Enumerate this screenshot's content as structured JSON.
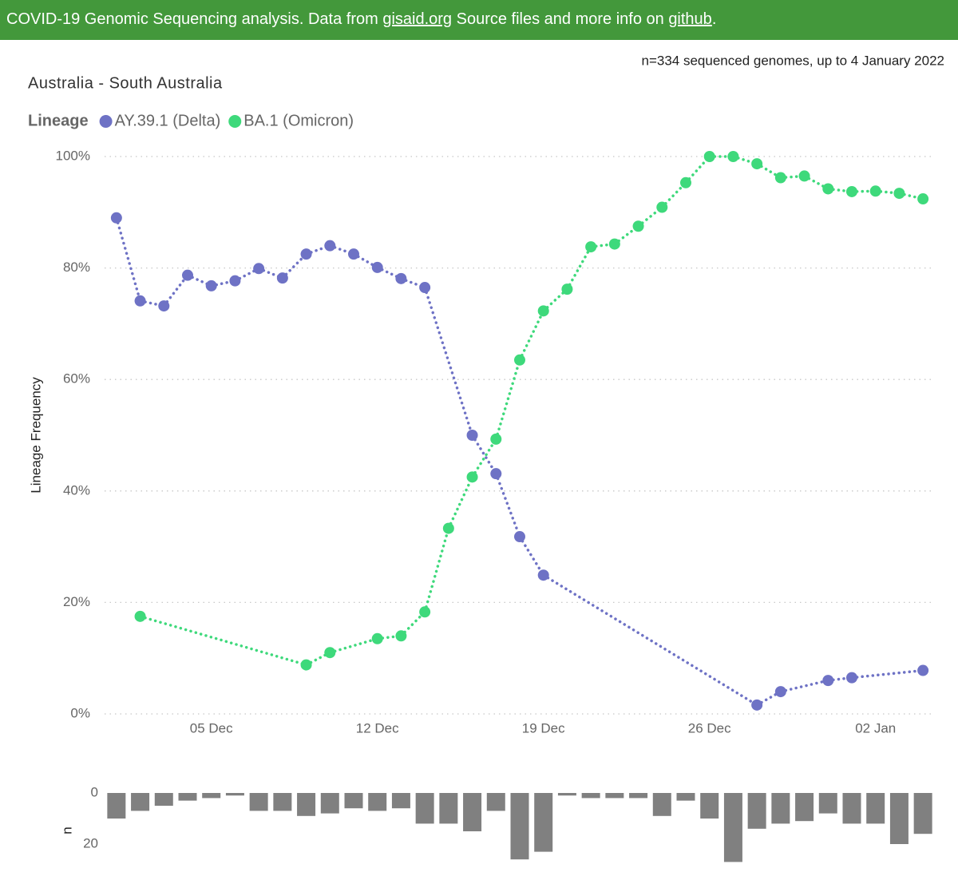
{
  "header": {
    "text_before": "COVID-19 Genomic Sequencing analysis. Data from ",
    "link_1": "gisaid.org",
    "text_middle": " Source files and more info on ",
    "link_2": "github",
    "text_after": "."
  },
  "chart_data": [
    {
      "type": "line",
      "title": "Australia - South Australia",
      "annotation": "n=334 sequenced genomes, up to 4 January 2022",
      "legend_title": "Lineage",
      "y_label": "Lineage Frequency",
      "categories": [
        null,
        null,
        null,
        null,
        "05 Dec",
        null,
        null,
        null,
        null,
        null,
        null,
        "12 Dec",
        null,
        null,
        null,
        null,
        null,
        null,
        "19 Dec",
        null,
        null,
        null,
        null,
        null,
        null,
        "26 Dec",
        null,
        null,
        null,
        null,
        null,
        null,
        "02 Jan",
        null,
        null
      ],
      "series": [
        {
          "name": "AY.39.1 (Delta)",
          "color": "#6e72c5",
          "values": [
            89,
            74.1,
            73.2,
            78.7,
            76.8,
            77.7,
            79.9,
            78.2,
            82.5,
            84,
            82.5,
            80.1,
            78.1,
            76.5,
            null,
            50,
            43.1,
            31.8,
            24.9,
            null,
            null,
            null,
            null,
            null,
            null,
            null,
            null,
            1.6,
            4,
            null,
            6,
            6.5,
            null,
            null,
            7.8
          ]
        },
        {
          "name": "BA.1 (Omicron)",
          "color": "#3ed97b",
          "values": [
            null,
            17.5,
            null,
            null,
            null,
            null,
            null,
            null,
            8.8,
            11,
            null,
            13.5,
            14,
            18.3,
            33.3,
            42.5,
            49.3,
            63.5,
            72.3,
            76.2,
            83.8,
            84.3,
            87.5,
            90.9,
            95.3,
            100,
            100,
            98.7,
            96.2,
            96.5,
            94.2,
            93.7,
            93.8,
            93.4,
            92.4
          ]
        }
      ],
      "ylim": [
        0,
        100
      ],
      "yticks": [
        {
          "value": 0,
          "label": "0%"
        },
        {
          "value": 20,
          "label": "20%"
        },
        {
          "value": 40,
          "label": "40%"
        },
        {
          "value": 60,
          "label": "60%"
        },
        {
          "value": 80,
          "label": "80%"
        },
        {
          "value": 100,
          "label": "100%"
        }
      ],
      "grid": true
    },
    {
      "type": "bar",
      "y_label": "n",
      "color": "#808080",
      "inverted": true,
      "values": [
        10,
        7,
        5,
        3,
        2,
        1,
        7,
        7,
        9,
        8,
        6,
        7,
        6,
        12,
        12,
        15,
        7,
        26,
        23,
        1,
        2,
        2,
        2,
        9,
        3,
        10,
        27,
        14,
        12,
        11,
        8,
        12,
        12,
        20,
        16
      ],
      "ylim": [
        0,
        30
      ],
      "yticks": [
        0,
        20
      ]
    }
  ]
}
